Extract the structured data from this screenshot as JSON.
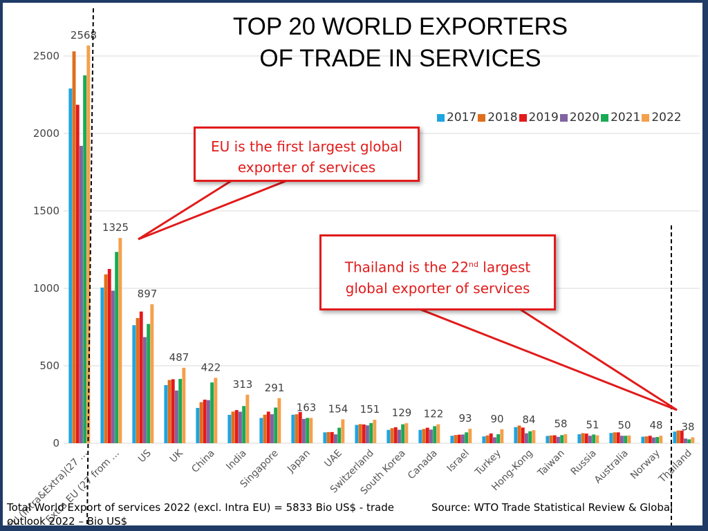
{
  "title_line1": "TOP 20 WORLD EXPORTERS",
  "title_line2": "OF TRADE IN SERVICES",
  "callouts": {
    "eu_text": "EU is the first largest global exporter of services",
    "thailand_text_pre": "Thailand is the 22",
    "thailand_text_sup": "nd",
    "thailand_text_post": " largest",
    "thailand_text_line2": "global exporter of services"
  },
  "footer": {
    "left": "Total World Export of services 2022 (excl. Intra EU) = 5833 Bio US$ - trade outlook 2022 – Bio US$",
    "right": "Source: WTO Trade Statistical Review & Global"
  },
  "colors": {
    "2017": "#1fa5e0",
    "2018": "#e06f1c",
    "2019": "#e31a1c",
    "2020": "#8064a2",
    "2021": "#1aaa55",
    "2022": "#f5a04c"
  },
  "chart_data": {
    "type": "bar",
    "title": "TOP 20 WORLD EXPORTERS OF TRADE IN SERVICES",
    "ylim": [
      0,
      2600
    ],
    "yticks": [
      0,
      500,
      1000,
      1500,
      2000,
      2500
    ],
    "grid": true,
    "legend_position": "top-right",
    "categories": [
      "EU (Intra&Extra)(27 ...",
      "Extra EU (27 from ...",
      "US",
      "UK",
      "China",
      "India",
      "Singapore",
      "Japan",
      "UAE",
      "Switzerland",
      "South Korea",
      "Canada",
      "Israel",
      "Turkey",
      "Hong-Kong",
      "Taiwan",
      "Russia",
      "Australia",
      "Norway",
      "Thailand"
    ],
    "series": [
      {
        "name": "2017",
        "values": [
          2290,
          1005,
          762,
          375,
          228,
          183,
          163,
          184,
          70,
          118,
          86,
          86,
          48,
          44,
          104,
          47,
          58,
          66,
          42,
          75
        ]
      },
      {
        "name": "2018",
        "values": [
          2530,
          1090,
          808,
          408,
          265,
          204,
          184,
          187,
          72,
          123,
          97,
          92,
          53,
          50,
          114,
          50,
          65,
          70,
          44,
          82
        ]
      },
      {
        "name": "2019",
        "values": [
          2185,
          1125,
          850,
          413,
          281,
          214,
          204,
          201,
          72,
          121,
          103,
          100,
          55,
          63,
          101,
          51,
          62,
          70,
          48,
          81
        ]
      },
      {
        "name": "2020",
        "values": [
          1920,
          985,
          685,
          340,
          278,
          203,
          187,
          157,
          57,
          115,
          87,
          88,
          56,
          38,
          64,
          41,
          48,
          48,
          37,
          30
        ]
      },
      {
        "name": "2021",
        "values": [
          2375,
          1235,
          770,
          415,
          392,
          240,
          230,
          163,
          100,
          130,
          122,
          110,
          70,
          58,
          77,
          52,
          56,
          48,
          40,
          25
        ]
      },
      {
        "name": "2022",
        "values": [
          2568,
          1325,
          897,
          487,
          422,
          313,
          291,
          163,
          154,
          151,
          129,
          122,
          93,
          90,
          84,
          58,
          51,
          50,
          48,
          38
        ]
      }
    ],
    "data_labels": [
      "2568",
      "1325",
      "897",
      "487",
      "422",
      "313",
      "291",
      "163",
      "154",
      "151",
      "129",
      "122",
      "93",
      "90",
      "84",
      "58",
      "51",
      "50",
      "48",
      "38"
    ]
  }
}
